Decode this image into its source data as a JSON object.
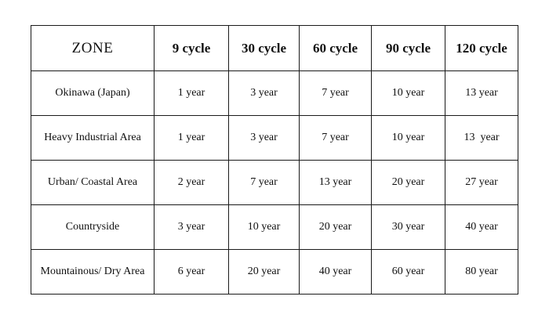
{
  "table": {
    "headers": [
      "ZONE",
      "9 cycle",
      "30 cycle",
      "60 cycle",
      "90 cycle",
      "120 cycle"
    ],
    "rows": [
      {
        "zone": "Okinawa (Japan)",
        "cells": [
          "1 year",
          "3 year",
          "7 year",
          "10 year",
          "13 year"
        ]
      },
      {
        "zone": "Heavy Industrial Area",
        "cells": [
          "1 year",
          "3 year",
          "7 year",
          "10 year",
          "13  year"
        ]
      },
      {
        "zone": "Urban/ Coastal Area",
        "cells": [
          "2 year",
          "7 year",
          "13 year",
          "20 year",
          "27 year"
        ]
      },
      {
        "zone": "Countryside",
        "cells": [
          "3 year",
          "10 year",
          "20 year",
          "30 year",
          "40 year"
        ]
      },
      {
        "zone": "Mountainous/ Dry Area",
        "cells": [
          "6 year",
          "20 year",
          "40 year",
          "60 year",
          "80 year"
        ]
      }
    ]
  }
}
